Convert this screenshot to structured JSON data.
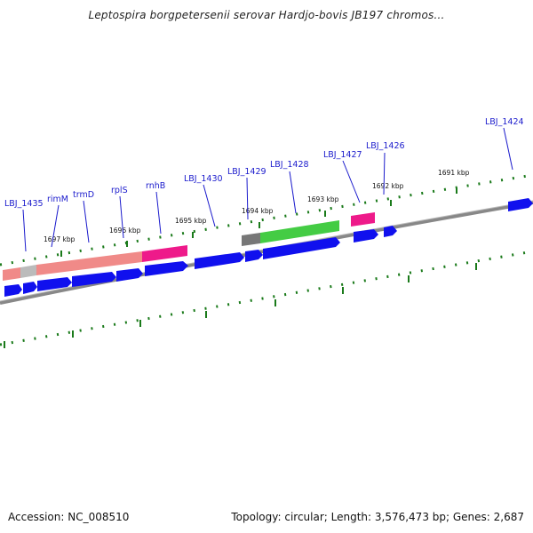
{
  "header": {
    "title": "Leptospira borgpetersenii serovar Hardjo-bovis JB197 chromos..."
  },
  "footer": {
    "accession": "Accession: NC_008510",
    "summary": "Topology: circular; Length: 3,576,473 bp; Genes: 2,687"
  },
  "scale": {
    "ticks": [
      "1697 kbp",
      "1696 kbp",
      "1695 kbp",
      "1694 kbp",
      "1693 kbp",
      "1692 kbp",
      "1691 kbp"
    ]
  },
  "genes": [
    {
      "label": "LBJ_1435"
    },
    {
      "label": "rimM"
    },
    {
      "label": "trmD"
    },
    {
      "label": "rplS"
    },
    {
      "label": "rnhB"
    },
    {
      "label": "LBJ_1430"
    },
    {
      "label": "LBJ_1429"
    },
    {
      "label": "LBJ_1428"
    },
    {
      "label": "LBJ_1427"
    },
    {
      "label": "LBJ_1426"
    },
    {
      "label": "LBJ_1424"
    }
  ],
  "colors": {
    "cds": "#1010ee",
    "backbone": "#888888",
    "ticks": "#1a7a1a",
    "label": "#1a1acc",
    "feature_salmon": "#f08a88",
    "feature_magenta": "#ee1a8a",
    "feature_green": "#44cc44",
    "feature_gray": "#777777"
  }
}
